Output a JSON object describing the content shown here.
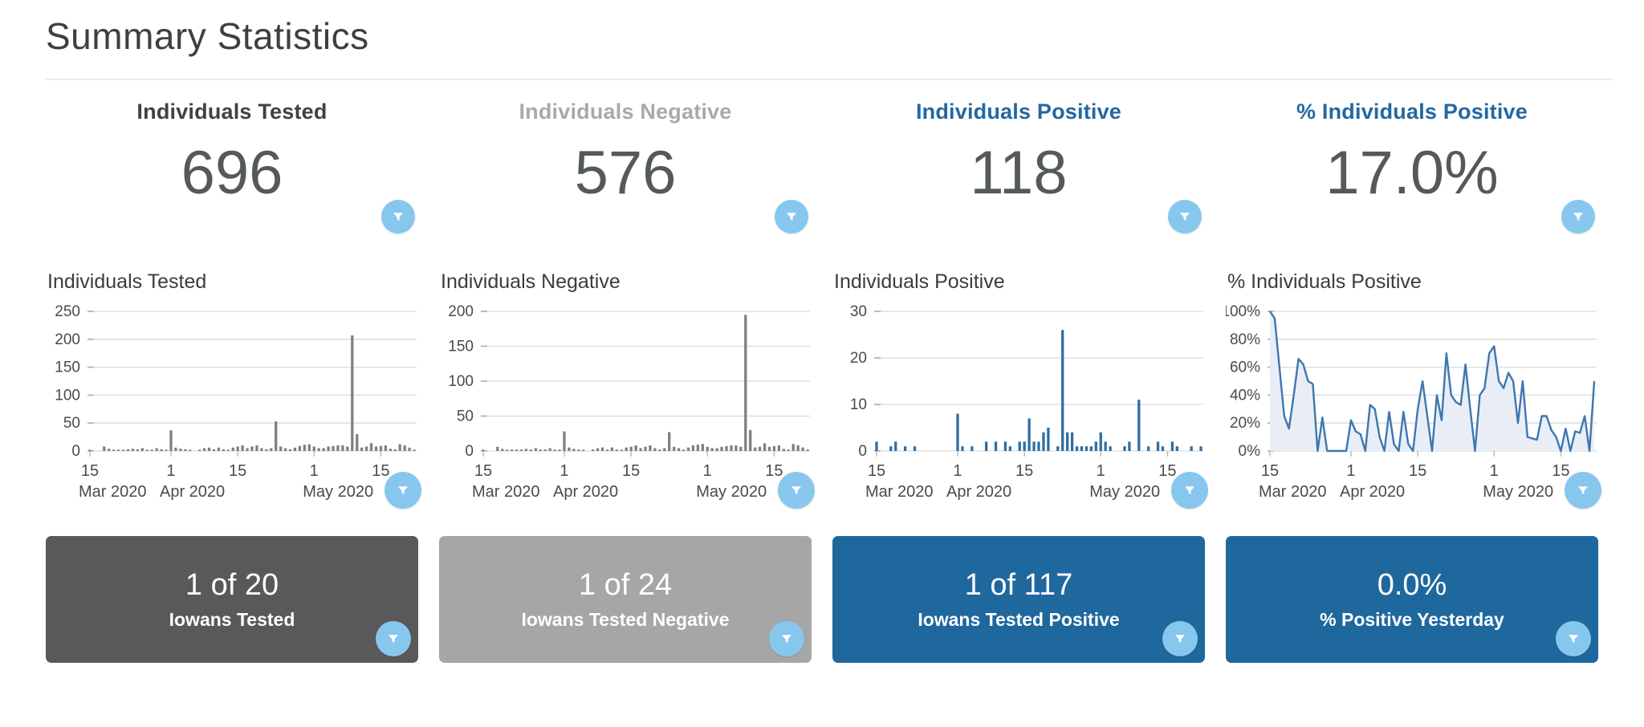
{
  "page": {
    "title": "Summary Statistics"
  },
  "filter_button": {
    "icon": "funnel-filter-icon",
    "circle_color": "#87c7ee",
    "glyph_color": "#ffffff"
  },
  "colors": {
    "big_number": "#54595b",
    "gray_bar": "#7f7f7f",
    "blue_bar": "#2e6da4",
    "blue_accent": "#2368a2",
    "gridline": "#d9d9d9"
  },
  "columns": [
    {
      "header": "Individuals Tested",
      "header_color": "#3f4245",
      "value": "696",
      "card": {
        "value": "1 of 20",
        "label": "Iowans Tested",
        "bg": "#595959"
      }
    },
    {
      "header": "Individuals Negative",
      "header_color": "#a9a9a9",
      "value": "576",
      "card": {
        "value": "1 of 24",
        "label": "Iowans Tested Negative",
        "bg": "#a6a6a6"
      }
    },
    {
      "header": "Individuals Positive",
      "header_color": "#2368a2",
      "value": "118",
      "card": {
        "value": "1 of 117",
        "label": "Iowans Tested Positive",
        "bg": "#1f689e"
      }
    },
    {
      "header": "% Individuals Positive",
      "header_color": "#2368a2",
      "value": "17.0%",
      "card": {
        "value": "0.0%",
        "label": "% Positive Yesterday",
        "bg": "#1f689e"
      }
    }
  ],
  "chart_data": [
    {
      "type": "bar",
      "title": "Individuals Tested",
      "xlabel": "",
      "ylabel": "",
      "color": "#7f7f7f",
      "ylim": [
        0,
        250
      ],
      "grid": true,
      "yticks": [
        {
          "v": 0,
          "label": "0"
        },
        {
          "v": 50,
          "label": "50"
        },
        {
          "v": 100,
          "label": "100"
        },
        {
          "v": 150,
          "label": "150"
        },
        {
          "v": 200,
          "label": "200"
        },
        {
          "v": 250,
          "label": "250"
        }
      ],
      "xticks": [
        {
          "i": 0,
          "day": "15",
          "month": "Mar 2020"
        },
        {
          "i": 17,
          "day": "1",
          "month": "Apr 2020"
        },
        {
          "i": 31,
          "day": "15"
        },
        {
          "i": 47,
          "day": "1",
          "month": "May 2020"
        },
        {
          "i": 61,
          "day": "15"
        }
      ],
      "values": [
        2,
        0,
        0,
        8,
        4,
        1,
        2,
        2,
        3,
        4,
        3,
        5,
        2,
        2,
        5,
        3,
        2,
        37,
        6,
        4,
        3,
        1,
        0,
        2,
        5,
        6,
        3,
        6,
        3,
        1,
        6,
        8,
        10,
        5,
        8,
        10,
        5,
        3,
        5,
        53,
        8,
        5,
        3,
        6,
        9,
        11,
        12,
        8,
        5,
        5,
        8,
        9,
        10,
        10,
        8,
        207,
        30,
        6,
        8,
        14,
        8,
        9,
        10,
        4,
        3,
        12,
        10,
        6,
        2
      ]
    },
    {
      "type": "bar",
      "title": "Individuals Negative",
      "xlabel": "",
      "ylabel": "",
      "color": "#7f7f7f",
      "ylim": [
        0,
        200
      ],
      "grid": true,
      "yticks": [
        {
          "v": 0,
          "label": "0"
        },
        {
          "v": 50,
          "label": "50"
        },
        {
          "v": 100,
          "label": "100"
        },
        {
          "v": 150,
          "label": "150"
        },
        {
          "v": 200,
          "label": "200"
        }
      ],
      "xticks": [
        {
          "i": 0,
          "day": "15",
          "month": "Mar 2020"
        },
        {
          "i": 17,
          "day": "1",
          "month": "Apr 2020"
        },
        {
          "i": 31,
          "day": "15"
        },
        {
          "i": 47,
          "day": "1",
          "month": "May 2020"
        },
        {
          "i": 61,
          "day": "15"
        }
      ],
      "values": [
        1,
        0,
        0,
        6,
        3,
        1,
        2,
        2,
        2,
        3,
        2,
        4,
        2,
        2,
        4,
        2,
        2,
        28,
        5,
        3,
        2,
        1,
        0,
        2,
        4,
        5,
        2,
        5,
        2,
        1,
        5,
        6,
        8,
        4,
        6,
        8,
        4,
        2,
        4,
        27,
        6,
        4,
        2,
        5,
        8,
        9,
        10,
        6,
        4,
        4,
        6,
        7,
        8,
        8,
        6,
        195,
        30,
        5,
        6,
        11,
        6,
        7,
        8,
        3,
        2,
        10,
        8,
        5,
        2
      ]
    },
    {
      "type": "bar",
      "title": "Individuals Positive",
      "xlabel": "",
      "ylabel": "",
      "color": "#2e6da4",
      "ylim": [
        0,
        30
      ],
      "grid": true,
      "yticks": [
        {
          "v": 0,
          "label": "0"
        },
        {
          "v": 10,
          "label": "10"
        },
        {
          "v": 20,
          "label": "20"
        },
        {
          "v": 30,
          "label": "30"
        }
      ],
      "xticks": [
        {
          "i": 0,
          "day": "15",
          "month": "Mar 2020"
        },
        {
          "i": 17,
          "day": "1",
          "month": "Apr 2020"
        },
        {
          "i": 31,
          "day": "15"
        },
        {
          "i": 47,
          "day": "1",
          "month": "May 2020"
        },
        {
          "i": 61,
          "day": "15"
        }
      ],
      "values": [
        2,
        0,
        0,
        1,
        2,
        0,
        1,
        0,
        1,
        0,
        0,
        0,
        0,
        0,
        0,
        0,
        0,
        8,
        1,
        0,
        1,
        0,
        0,
        2,
        0,
        2,
        0,
        2,
        1,
        0,
        2,
        2,
        7,
        2,
        2,
        4,
        5,
        0,
        1,
        26,
        4,
        4,
        1,
        1,
        1,
        1,
        2,
        4,
        2,
        1,
        0,
        0,
        1,
        2,
        0,
        11,
        0,
        1,
        0,
        2,
        1,
        0,
        2,
        1,
        0,
        0,
        1,
        0,
        1
      ]
    },
    {
      "type": "line",
      "title": "% Individuals Positive",
      "xlabel": "",
      "ylabel": "",
      "color": "#3e76af",
      "fill": "#e9eef6",
      "ylim": [
        0,
        100
      ],
      "grid": true,
      "yticks": [
        {
          "v": 0,
          "label": "0%"
        },
        {
          "v": 20,
          "label": "20%"
        },
        {
          "v": 40,
          "label": "40%"
        },
        {
          "v": 60,
          "label": "60%"
        },
        {
          "v": 80,
          "label": "80%"
        },
        {
          "v": 100,
          "label": "100%"
        }
      ],
      "xticks": [
        {
          "i": 0,
          "day": "15",
          "month": "Mar 2020"
        },
        {
          "i": 17,
          "day": "1",
          "month": "Apr 2020"
        },
        {
          "i": 31,
          "day": "15"
        },
        {
          "i": 47,
          "day": "1",
          "month": "May 2020"
        },
        {
          "i": 61,
          "day": "15"
        }
      ],
      "values": [
        100,
        95,
        60,
        25,
        16,
        40,
        66,
        62,
        50,
        48,
        0,
        24,
        0,
        0,
        0,
        0,
        0,
        22,
        14,
        12,
        0,
        33,
        30,
        10,
        0,
        28,
        5,
        0,
        28,
        5,
        0,
        30,
        50,
        25,
        0,
        40,
        22,
        70,
        40,
        35,
        33,
        62,
        30,
        0,
        40,
        45,
        70,
        75,
        50,
        45,
        56,
        50,
        20,
        50,
        10,
        9,
        8,
        25,
        25,
        15,
        10,
        0,
        16,
        0,
        14,
        13,
        25,
        0,
        50
      ]
    }
  ]
}
